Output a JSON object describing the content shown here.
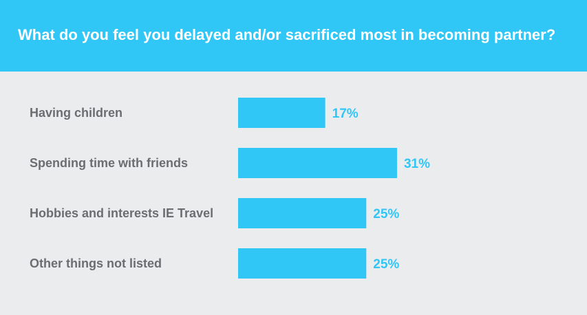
{
  "chart_data": {
    "type": "bar",
    "orientation": "horizontal",
    "title": "What do you feel you delayed and/or sacrificed most in becoming partner?",
    "categories": [
      "Having children",
      "Spending time with friends",
      "Hobbies and interests IE Travel",
      "Other things not listed"
    ],
    "values": [
      17,
      31,
      25,
      25
    ],
    "value_labels": [
      "17%",
      "31%",
      "25%",
      "25%"
    ],
    "unit": "%",
    "grid": false,
    "legend": "none"
  },
  "colors": {
    "header_bg": "#30c6f6",
    "bar": "#30c6f6",
    "value_text": "#30c6f6",
    "label_text": "#6b6d70",
    "background": "#ebecee"
  }
}
